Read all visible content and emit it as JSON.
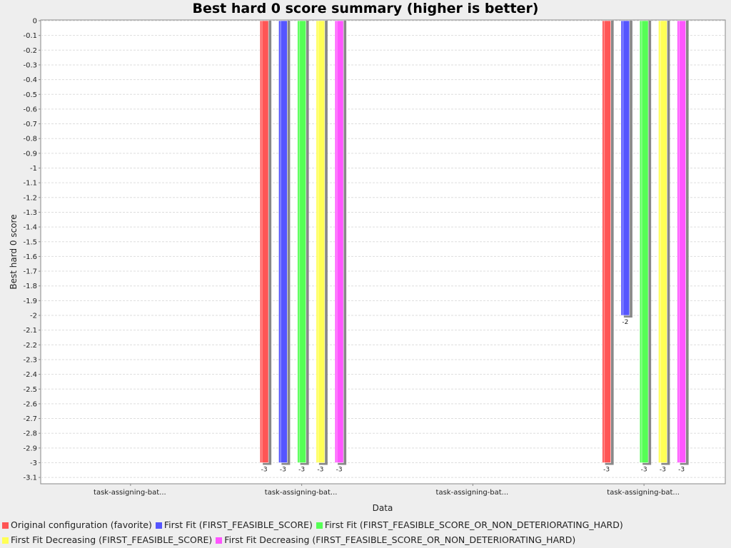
{
  "chart_data": {
    "type": "bar",
    "title": "Best hard 0 score summary (higher is better)",
    "xlabel": "Data",
    "ylabel": "Best hard 0 score",
    "ylim": [
      -3.15,
      0
    ],
    "yticks": [
      "0",
      "-0.1",
      "-0.2",
      "-0.3",
      "-0.4",
      "-0.5",
      "-0.6",
      "-0.7",
      "-0.8",
      "-0.9",
      "-1",
      "-1.1",
      "-1.2",
      "-1.3",
      "-1.4",
      "-1.5",
      "-1.6",
      "-1.7",
      "-1.8",
      "-1.9",
      "-2",
      "-2.1",
      "-2.2",
      "-2.3",
      "-2.4",
      "-2.5",
      "-2.6",
      "-2.7",
      "-2.8",
      "-2.9",
      "-3",
      "-3.1"
    ],
    "grid": true,
    "legend_position": "bottom",
    "categories": [
      "task-assigning-bat...",
      "task-assigning-bat...",
      "task-assigning-bat...",
      "task-assigning-bat..."
    ],
    "series": [
      {
        "name": "Original configuration (favorite)",
        "color": "#ff5555",
        "values": [
          null,
          -3,
          null,
          -3
        ]
      },
      {
        "name": "First Fit (FIRST_FEASIBLE_SCORE)",
        "color": "#5555ff",
        "values": [
          null,
          -3,
          null,
          -2
        ]
      },
      {
        "name": "First Fit (FIRST_FEASIBLE_SCORE_OR_NON_DETERIORATING_HARD)",
        "color": "#55ff55",
        "values": [
          null,
          -3,
          null,
          -3
        ]
      },
      {
        "name": "First Fit Decreasing (FIRST_FEASIBLE_SCORE)",
        "color": "#ffff55",
        "values": [
          null,
          -3,
          null,
          -3
        ]
      },
      {
        "name": "First Fit Decreasing (FIRST_FEASIBLE_SCORE_OR_NON_DETERIORATING_HARD)",
        "color": "#ff55ff",
        "values": [
          null,
          -3,
          null,
          -3
        ]
      }
    ]
  },
  "legend_rows": [
    [
      0,
      1,
      2
    ],
    [
      3,
      4
    ]
  ]
}
